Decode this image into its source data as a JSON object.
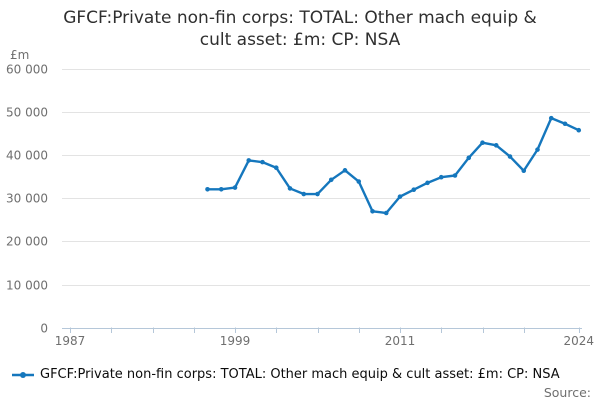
{
  "title": "GFCF:Private non-fin corps: TOTAL: Other mach equip & cult asset: £m: CP: NSA",
  "y_unit_label": "£m",
  "source_label": "Source:",
  "legend": {
    "label": "GFCF:Private non-fin corps: TOTAL: Other mach equip & cult asset: £m: CP: NSA"
  },
  "colors": {
    "line": "#1577bd",
    "grid": "#e3e3e3",
    "axis": "#b5c7d9",
    "tick_text": "#6f6f6f",
    "title_text": "#2f2f2f",
    "legend_text": "#0c0c0c"
  },
  "chart_data": {
    "type": "line",
    "title": "GFCF:Private non-fin corps: TOTAL: Other mach equip & cult asset: £m: CP: NSA",
    "xlabel": "",
    "ylabel": "£m",
    "x": [
      1997,
      1998,
      1999,
      2000,
      2001,
      2002,
      2003,
      2004,
      2005,
      2006,
      2007,
      2008,
      2009,
      2010,
      2011,
      2012,
      2013,
      2014,
      2015,
      2016,
      2017,
      2018,
      2019,
      2020,
      2021,
      2022,
      2023,
      2024
    ],
    "values": [
      32100,
      32100,
      32500,
      38800,
      38400,
      37100,
      32300,
      31000,
      31000,
      34300,
      36500,
      33900,
      27000,
      26600,
      30400,
      32000,
      33600,
      34900,
      35300,
      39400,
      42900,
      42300,
      39700,
      36400,
      41300,
      48600,
      47300,
      45800
    ],
    "series_name": "GFCF:Private non-fin corps: TOTAL: Other mach equip & cult asset: £m: CP: NSA",
    "ylim": [
      0,
      60000
    ],
    "ytick_values": [
      0,
      10000,
      20000,
      30000,
      40000,
      50000,
      60000
    ],
    "ytick_labels": [
      "0",
      "10 000",
      "20 000",
      "30 000",
      "40 000",
      "50 000",
      "60 000"
    ],
    "xlim": [
      1987,
      2024
    ],
    "xtick_minor_years": [
      1987,
      1990,
      1993,
      1996,
      1999,
      2002,
      2005,
      2008,
      2011,
      2014,
      2017,
      2020,
      2024
    ],
    "xtick_labels": [
      {
        "year": 1987,
        "label": "1987"
      },
      {
        "year": 1999,
        "label": "1999"
      },
      {
        "year": 2011,
        "label": "2011"
      },
      {
        "year": 2024,
        "label": "2024"
      }
    ],
    "grid": "horizontal",
    "markers": true,
    "legend_position": "bottom-left"
  }
}
